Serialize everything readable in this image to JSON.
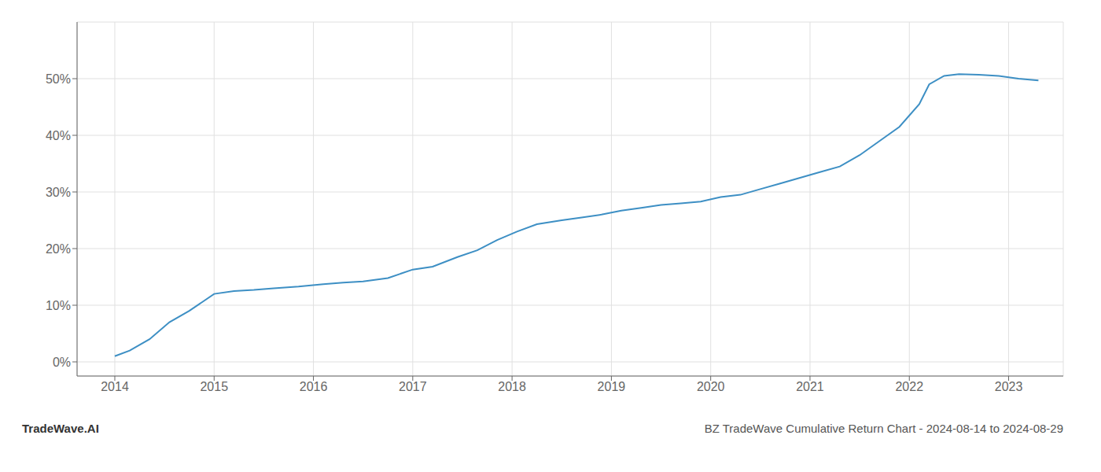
{
  "chart_data": {
    "type": "line",
    "title": "BZ TradeWave Cumulative Return Chart - 2024-08-14 to 2024-08-29",
    "annotations": [
      "TradeWave.AI"
    ],
    "x": [
      2014.0,
      2014.15,
      2014.35,
      2014.55,
      2014.75,
      2015.0,
      2015.2,
      2015.4,
      2015.6,
      2015.85,
      2016.1,
      2016.3,
      2016.5,
      2016.75,
      2017.0,
      2017.2,
      2017.45,
      2017.65,
      2017.85,
      2018.05,
      2018.25,
      2018.5,
      2018.7,
      2018.9,
      2019.1,
      2019.3,
      2019.5,
      2019.7,
      2019.9,
      2020.1,
      2020.3,
      2020.5,
      2020.7,
      2020.9,
      2021.1,
      2021.3,
      2021.5,
      2021.7,
      2021.9,
      2022.1,
      2022.2,
      2022.35,
      2022.5,
      2022.7,
      2022.9,
      2023.1,
      2023.3
    ],
    "values": [
      0.01,
      0.02,
      0.04,
      0.07,
      0.09,
      0.12,
      0.125,
      0.127,
      0.13,
      0.133,
      0.137,
      0.14,
      0.142,
      0.148,
      0.163,
      0.168,
      0.185,
      0.197,
      0.215,
      0.23,
      0.243,
      0.25,
      0.255,
      0.26,
      0.267,
      0.272,
      0.277,
      0.28,
      0.283,
      0.291,
      0.295,
      0.305,
      0.315,
      0.325,
      0.335,
      0.345,
      0.365,
      0.39,
      0.415,
      0.455,
      0.49,
      0.505,
      0.508,
      0.507,
      0.505,
      0.5,
      0.497
    ],
    "color": "#3d8fc4",
    "xlim": [
      2013.62,
      2023.55
    ],
    "ylim": [
      -0.025,
      0.6
    ],
    "xticks": [
      2014,
      2015,
      2016,
      2017,
      2018,
      2019,
      2020,
      2021,
      2022,
      2023
    ],
    "yticks": [
      {
        "value": 0.0,
        "label": "0%"
      },
      {
        "value": 0.1,
        "label": "10%"
      },
      {
        "value": 0.2,
        "label": "20%"
      },
      {
        "value": 0.3,
        "label": "30%"
      },
      {
        "value": 0.4,
        "label": "40%"
      },
      {
        "value": 0.5,
        "label": "50%"
      }
    ],
    "grid": true
  }
}
